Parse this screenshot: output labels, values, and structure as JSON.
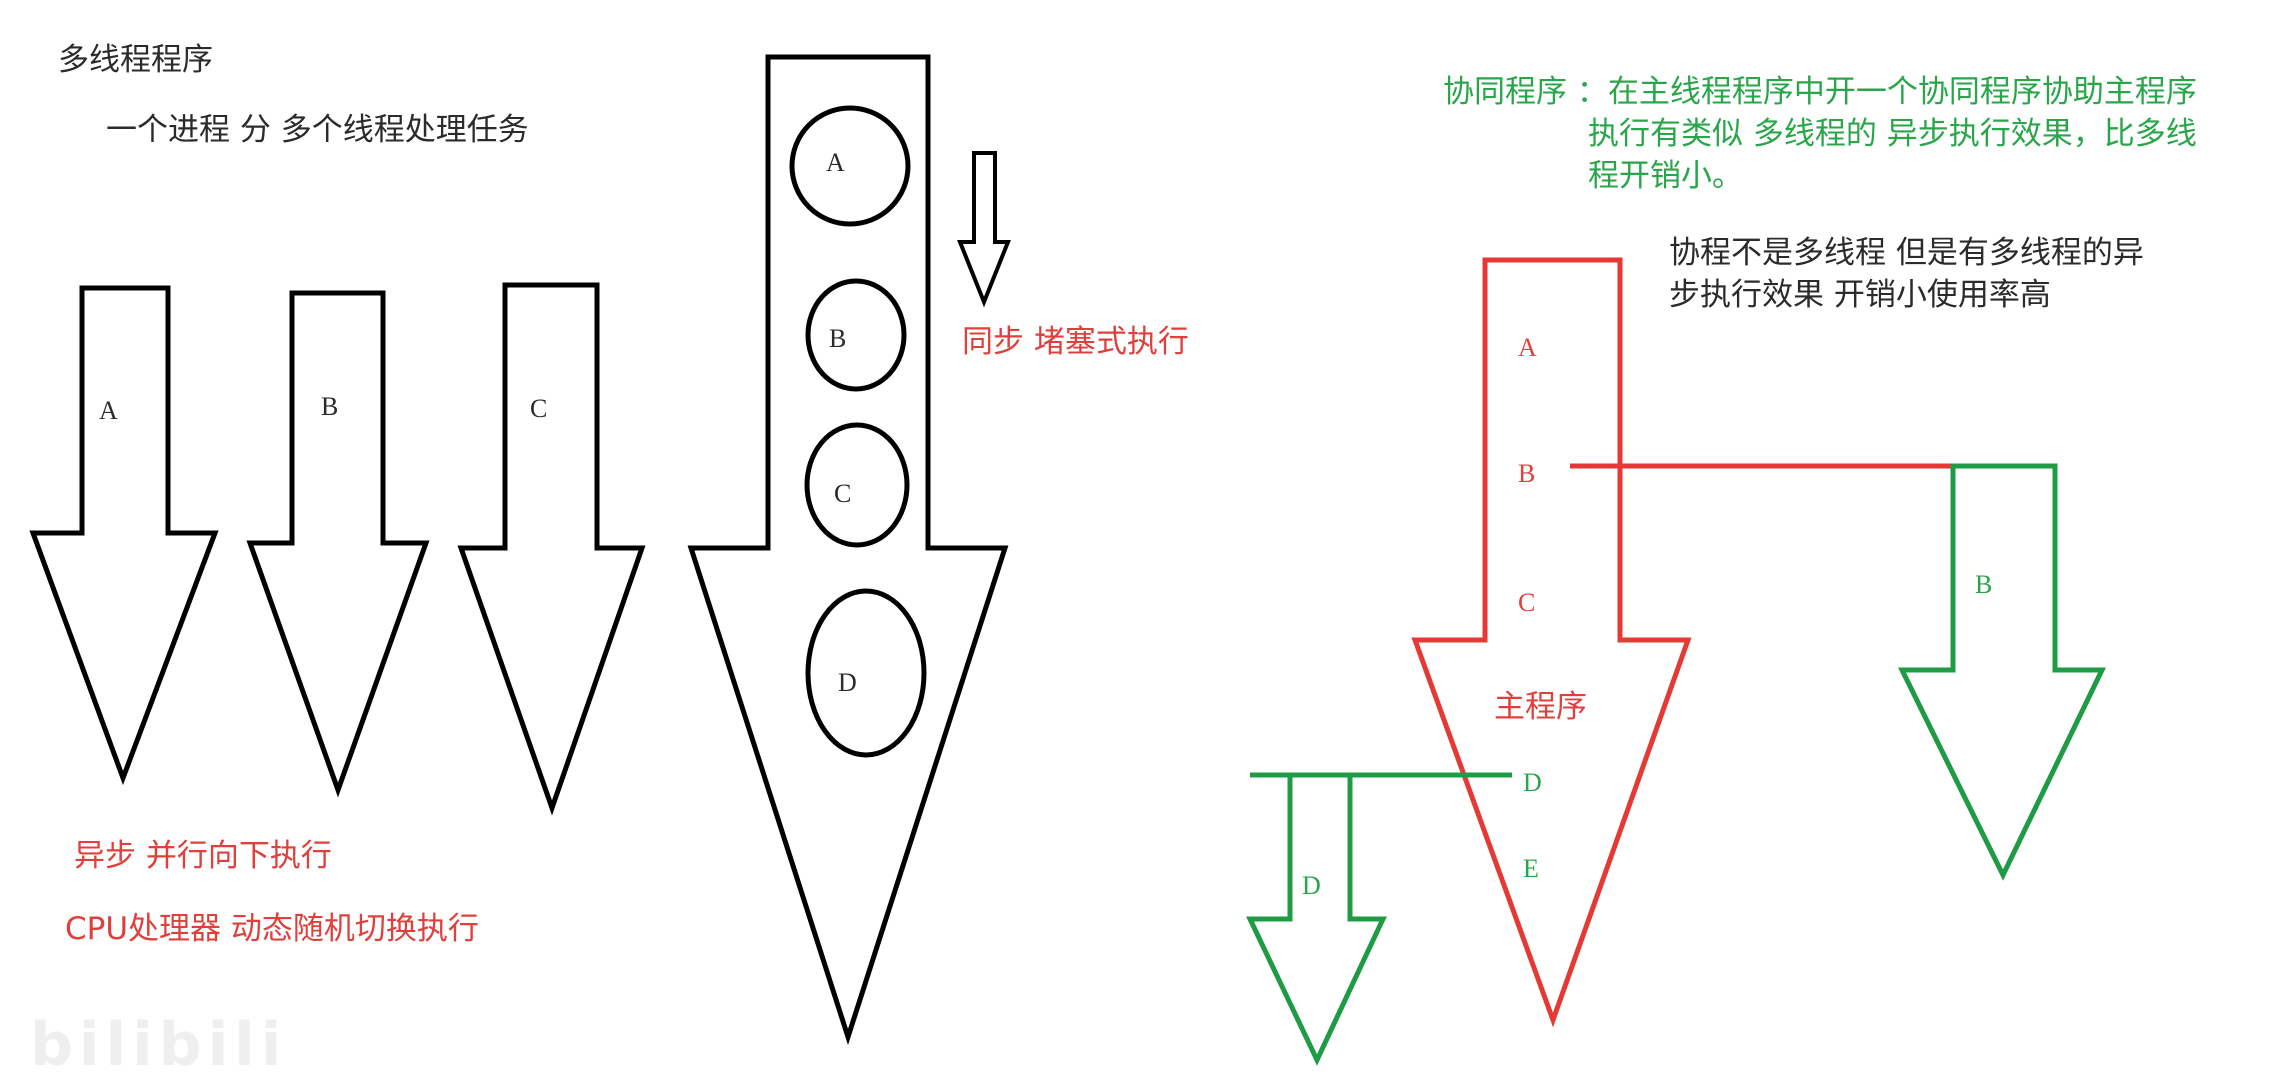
{
  "left_title": "多线程程序",
  "left_subtitle": "一个进程  分  多个线程处理任务",
  "async_caption": "异步  并行向下执行",
  "cpu_caption": "CPU处理器  动态随机切换执行",
  "sync_caption": "同步  堵塞式执行",
  "coroutine_desc": {
    "line1": "协同程序  ：在主线程程序中开一个协同程序协助主程序",
    "line2": "执行有类似  多线程的  异步执行效果，比多线",
    "line3": "程开销小。"
  },
  "coroutine_note": {
    "line1": "协程不是多线程    但是有多线程的异",
    "line2": "步执行效果  开销小使用率高"
  },
  "parallel_arrows": [
    "A",
    "B",
    "C"
  ],
  "sync_circles": [
    "A",
    "B",
    "C",
    "D"
  ],
  "main_program": {
    "labels": [
      "A",
      "B",
      "C",
      "D",
      "E"
    ],
    "title": "主程序"
  },
  "coroutine_b_label": "B",
  "coroutine_d_label": "D",
  "watermark": "bilibili",
  "colors": {
    "black": "#000000",
    "red": "#e53935",
    "green": "#1f9b45",
    "red_text": "#e0403c",
    "green_text": "#2aa64a"
  }
}
